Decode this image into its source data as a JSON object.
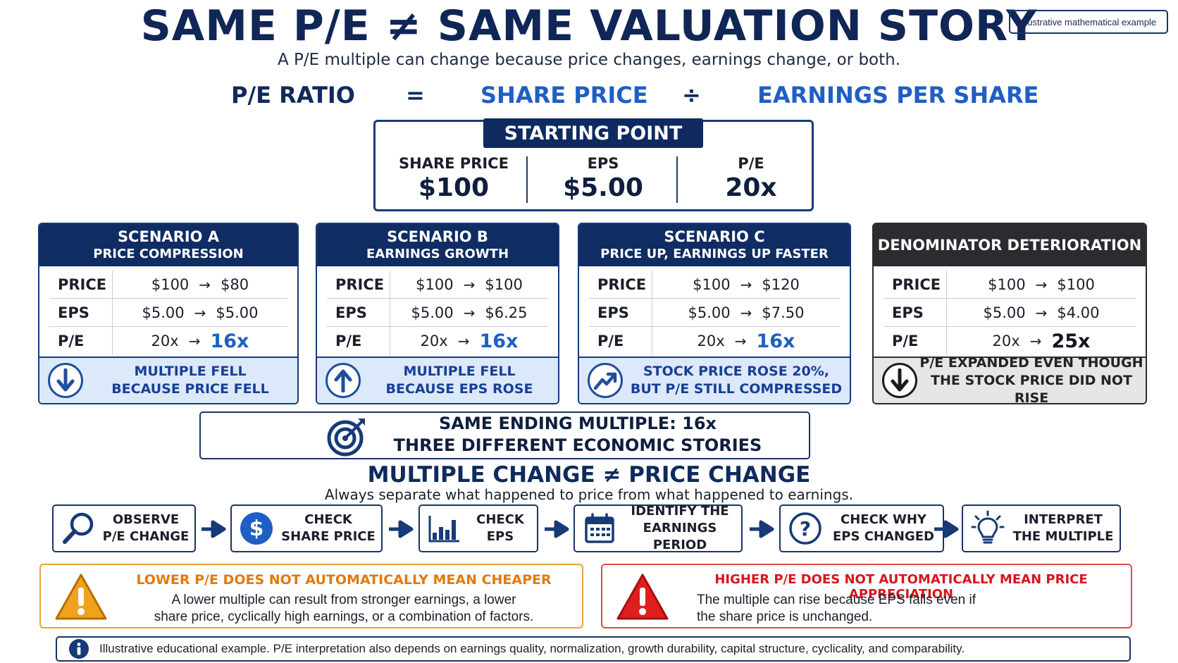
{
  "header": {
    "title": "SAME P/E ≠ SAME VALUATION STORY",
    "subtitle": "A P/E multiple can change because price changes, earnings change, or both.",
    "badge": "Illustrative mathematical example"
  },
  "formula": {
    "left": "P/E RATIO",
    "equals": "=",
    "price": "SHARE PRICE",
    "divide": "÷",
    "eps": "EARNINGS PER SHARE"
  },
  "starting_point": {
    "title": "STARTING POINT",
    "items": [
      {
        "label": "SHARE PRICE",
        "value": "$100"
      },
      {
        "label": "EPS",
        "value": "$5.00"
      },
      {
        "label": "P/E",
        "value": "20x"
      }
    ]
  },
  "arrow_glyph": "→",
  "scenarios": [
    {
      "title": "SCENARIO A",
      "subtitle": "PRICE COMPRESSION",
      "rows": [
        {
          "label": "PRICE",
          "from": "$100",
          "to": "$80"
        },
        {
          "label": "EPS",
          "from": "$5.00",
          "to": "$5.00"
        },
        {
          "label": "P/E",
          "from": "20x",
          "to": "16x"
        }
      ],
      "footer_line1": "MULTIPLE FELL",
      "footer_line2": "BECAUSE PRICE FELL",
      "icon": "arrow-down-circle-icon"
    },
    {
      "title": "SCENARIO B",
      "subtitle": "EARNINGS GROWTH",
      "rows": [
        {
          "label": "PRICE",
          "from": "$100",
          "to": "$100"
        },
        {
          "label": "EPS",
          "from": "$5.00",
          "to": "$6.25"
        },
        {
          "label": "P/E",
          "from": "20x",
          "to": "16x"
        }
      ],
      "footer_line1": "MULTIPLE FELL",
      "footer_line2": "BECAUSE EPS ROSE",
      "icon": "arrow-up-circle-icon"
    },
    {
      "title": "SCENARIO C",
      "subtitle": "PRICE UP, EARNINGS UP FASTER",
      "rows": [
        {
          "label": "PRICE",
          "from": "$100",
          "to": "$120"
        },
        {
          "label": "EPS",
          "from": "$5.00",
          "to": "$7.50"
        },
        {
          "label": "P/E",
          "from": "20x",
          "to": "16x"
        }
      ],
      "footer_line1": "STOCK PRICE ROSE 20%,",
      "footer_line2": "BUT P/E STILL COMPRESSED",
      "icon": "trend-up-circle-icon"
    },
    {
      "title": "DENOMINATOR DETERIORATION",
      "rows": [
        {
          "label": "PRICE",
          "from": "$100",
          "to": "$100"
        },
        {
          "label": "EPS",
          "from": "$5.00",
          "to": "$4.00"
        },
        {
          "label": "P/E",
          "from": "20x",
          "to": "25x"
        }
      ],
      "footer_line1": "P/E EXPANDED EVEN THOUGH",
      "footer_line2": "THE STOCK PRICE DID NOT RISE",
      "icon": "arrow-down-circle-icon"
    }
  ],
  "summary": {
    "line1": "SAME ENDING MULTIPLE: 16x",
    "line2": "THREE DIFFERENT ECONOMIC STORIES"
  },
  "multiple_change": {
    "title": "MULTIPLE CHANGE  ≠  PRICE CHANGE",
    "subtitle": "Always separate what happened to price from what happened to earnings."
  },
  "steps": [
    {
      "line1": "OBSERVE",
      "line2": "P/E CHANGE",
      "icon": "magnifier-icon"
    },
    {
      "line1": "CHECK",
      "line2": "SHARE PRICE",
      "icon": "dollar-icon"
    },
    {
      "line1": "CHECK",
      "line2": "EPS",
      "icon": "bar-chart-icon"
    },
    {
      "line1": "IDENTIFY THE",
      "line2": "EARNINGS PERIOD",
      "icon": "calendar-icon"
    },
    {
      "line1": "CHECK WHY",
      "line2": "EPS CHANGED",
      "icon": "question-icon"
    },
    {
      "line1": "INTERPRET",
      "line2": "THE MULTIPLE",
      "icon": "lightbulb-icon"
    }
  ],
  "warnings": {
    "left": {
      "title": "LOWER P/E DOES NOT AUTOMATICALLY MEAN CHEAPER",
      "line1": "A lower multiple can result from stronger earnings, a lower",
      "line2": "share price, cyclically high earnings, or a combination of factors.",
      "color": "#e07a10"
    },
    "right": {
      "title": "HIGHER P/E DOES NOT AUTOMATICALLY MEAN PRICE APPRECIATION",
      "line1": "The multiple can rise because EPS falls even if",
      "line2": "the share price is unchanged.",
      "color": "#d8141c"
    }
  },
  "info": {
    "text": "Illustrative educational example. P/E interpretation also depends on earnings quality, normalization, growth durability, capital structure, cyclicality, and comparability."
  },
  "colors": {
    "navy": "#0f2a5c",
    "accent_blue": "#1f5fc4",
    "dark_header": "#2a2c30",
    "orange": "#e9a23b",
    "red": "#e04a4a"
  }
}
